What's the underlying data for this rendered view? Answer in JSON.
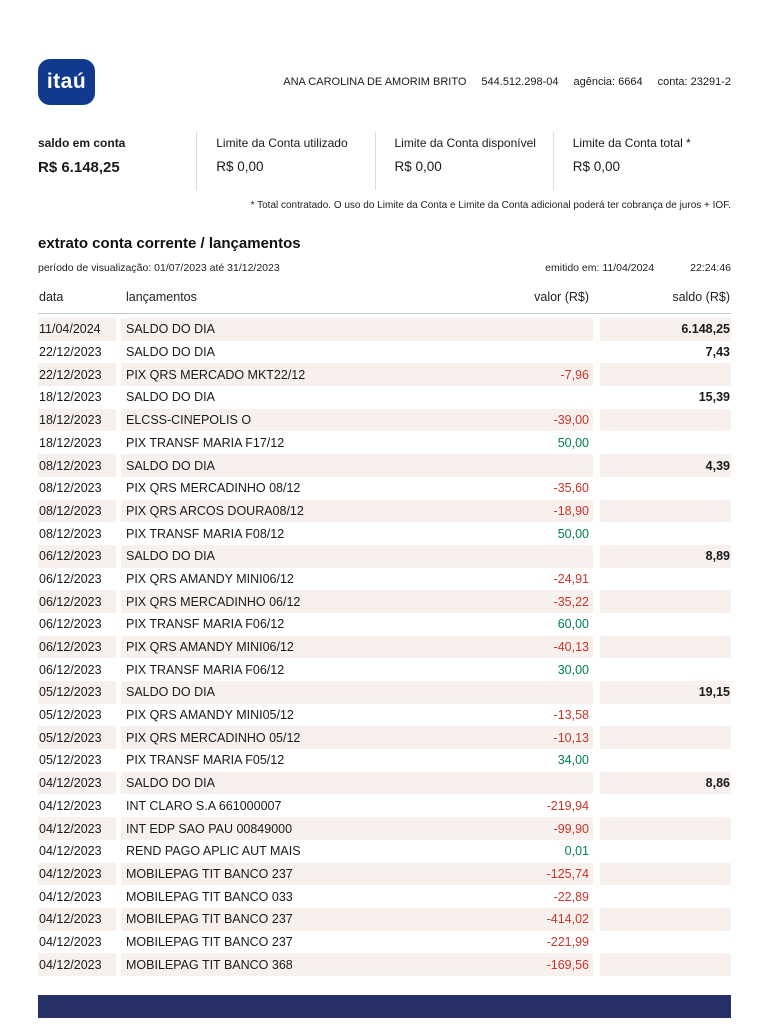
{
  "brand": {
    "logo_text": "itaú"
  },
  "header": {
    "account_holder": "ANA CAROLINA DE AMORIM BRITO",
    "cpf": "544.512.298-04",
    "agency": "agência: 6664",
    "account": "conta: 23291-2"
  },
  "summary": {
    "items": [
      {
        "label": "saldo em conta",
        "value": "R$ 6.148,25"
      },
      {
        "label": "Limite da Conta utilizado",
        "value": "R$ 0,00"
      },
      {
        "label": "Limite da Conta disponível",
        "value": "R$ 0,00"
      },
      {
        "label": "Limite da Conta total *",
        "value": "R$ 0,00"
      }
    ],
    "footnote": "* Total contratado. O uso do Limite da Conta e Limite da Conta adicional poderá ter cobrança de juros + IOF."
  },
  "statement": {
    "title": "extrato conta corrente / lançamentos",
    "period": "período de visualização: 01/07/2023 até 31/12/2023",
    "issued_label": "emitido em: 11/04/2024",
    "issued_time": "22:24:46",
    "columns": [
      "data",
      "lançamentos",
      "valor (R$)",
      "saldo (R$)"
    ],
    "rows": [
      {
        "date": "11/04/2024",
        "description": "SALDO DO DIA",
        "value": "",
        "balance": "6.148,25"
      },
      {
        "date": "22/12/2023",
        "description": "SALDO DO DIA",
        "value": "",
        "balance": "7,43"
      },
      {
        "date": "22/12/2023",
        "description": "PIX QRS MERCADO MKT22/12",
        "value": "-7,96",
        "balance": ""
      },
      {
        "date": "18/12/2023",
        "description": "SALDO DO DIA",
        "value": "",
        "balance": "15,39"
      },
      {
        "date": "18/12/2023",
        "description": "ELCSS-CINEPOLIS O",
        "value": "-39,00",
        "balance": ""
      },
      {
        "date": "18/12/2023",
        "description": "PIX TRANSF MARIA F17/12",
        "value": "50,00",
        "balance": ""
      },
      {
        "date": "08/12/2023",
        "description": "SALDO DO DIA",
        "value": "",
        "balance": "4,39"
      },
      {
        "date": "08/12/2023",
        "description": "PIX QRS MERCADINHO 08/12",
        "value": "-35,60",
        "balance": ""
      },
      {
        "date": "08/12/2023",
        "description": "PIX QRS ARCOS DOURA08/12",
        "value": "-18,90",
        "balance": ""
      },
      {
        "date": "08/12/2023",
        "description": "PIX TRANSF MARIA F08/12",
        "value": "50,00",
        "balance": ""
      },
      {
        "date": "06/12/2023",
        "description": "SALDO DO DIA",
        "value": "",
        "balance": "8,89"
      },
      {
        "date": "06/12/2023",
        "description": "PIX QRS AMANDY MINI06/12",
        "value": "-24,91",
        "balance": ""
      },
      {
        "date": "06/12/2023",
        "description": "PIX QRS MERCADINHO 06/12",
        "value": "-35,22",
        "balance": ""
      },
      {
        "date": "06/12/2023",
        "description": "PIX TRANSF MARIA F06/12",
        "value": "60,00",
        "balance": ""
      },
      {
        "date": "06/12/2023",
        "description": "PIX QRS AMANDY MINI06/12",
        "value": "-40,13",
        "balance": ""
      },
      {
        "date": "06/12/2023",
        "description": "PIX TRANSF MARIA F06/12",
        "value": "30,00",
        "balance": ""
      },
      {
        "date": "05/12/2023",
        "description": "SALDO DO DIA",
        "value": "",
        "balance": "19,15"
      },
      {
        "date": "05/12/2023",
        "description": "PIX QRS AMANDY MINI05/12",
        "value": "-13,58",
        "balance": ""
      },
      {
        "date": "05/12/2023",
        "description": "PIX QRS MERCADINHO 05/12",
        "value": "-10,13",
        "balance": ""
      },
      {
        "date": "05/12/2023",
        "description": "PIX TRANSF MARIA F05/12",
        "value": "34,00",
        "balance": ""
      },
      {
        "date": "04/12/2023",
        "description": "SALDO DO DIA",
        "value": "",
        "balance": "8,86"
      },
      {
        "date": "04/12/2023",
        "description": "INT CLARO S.A 661000007",
        "value": "-219,94",
        "balance": ""
      },
      {
        "date": "04/12/2023",
        "description": "INT EDP SAO PAU 00849000",
        "value": "-99,90",
        "balance": ""
      },
      {
        "date": "04/12/2023",
        "description": "REND PAGO APLIC AUT MAIS",
        "value": "0,01",
        "balance": ""
      },
      {
        "date": "04/12/2023",
        "description": "MOBILEPAG TIT BANCO 237",
        "value": "-125,74",
        "balance": ""
      },
      {
        "date": "04/12/2023",
        "description": "MOBILEPAG TIT BANCO 033",
        "value": "-22,89",
        "balance": ""
      },
      {
        "date": "04/12/2023",
        "description": "MOBILEPAG TIT BANCO 237",
        "value": "-414,02",
        "balance": ""
      },
      {
        "date": "04/12/2023",
        "description": "MOBILEPAG TIT BANCO 237",
        "value": "-221,99",
        "balance": ""
      },
      {
        "date": "04/12/2023",
        "description": "MOBILEPAG TIT BANCO 368",
        "value": "-169,56",
        "balance": ""
      }
    ]
  },
  "colors": {
    "brand_blue": "#113a8e",
    "footer_bar": "#283167",
    "negative": "#c9342a",
    "positive": "#00814d",
    "stripe": "#f8f0ed"
  }
}
